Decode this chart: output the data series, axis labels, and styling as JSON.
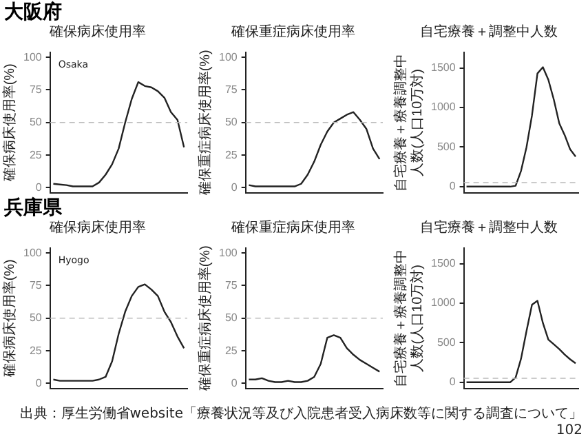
{
  "chart_data": [
    {
      "type": "line",
      "title": "大阪府",
      "subtitle": "確保病床使用率",
      "ylabel": "確保病床使用率(%)",
      "annotations": [
        "Osaka"
      ],
      "categories": [
        null,
        null,
        null,
        null,
        null,
        null,
        null,
        null,
        null,
        null,
        null,
        null,
        null,
        null,
        null,
        null,
        null,
        null,
        null,
        null,
        null
      ],
      "series": [
        {
          "color": "#222222",
          "values": [
            3,
            2.5,
            2,
            1,
            1,
            1,
            1,
            4,
            10,
            18,
            30,
            50,
            68,
            81,
            78,
            77,
            74,
            69,
            58,
            52,
            31
          ]
        }
      ],
      "ylim": [
        -4,
        104
      ],
      "yticks": [
        0,
        25,
        50,
        75,
        100
      ],
      "ref_lines": [
        {
          "axis": "y",
          "value": 50,
          "color": "#bbbbbb",
          "line_style": "dashed"
        }
      ],
      "tick_labels": "y",
      "grid": false,
      "legend": false,
      "marker": "none",
      "line_style": "solid"
    },
    {
      "type": "line",
      "title": "確保重症病床使用率",
      "ylabel": "確保重症病床使用率(%)",
      "categories": [
        null,
        null,
        null,
        null,
        null,
        null,
        null,
        null,
        null,
        null,
        null,
        null,
        null,
        null,
        null,
        null,
        null,
        null,
        null,
        null,
        null
      ],
      "series": [
        {
          "color": "#222222",
          "values": [
            2,
            1,
            1,
            1,
            1,
            1,
            1,
            1,
            3,
            10,
            20,
            33,
            43,
            50,
            53,
            56,
            58,
            52,
            45,
            30,
            22
          ]
        }
      ],
      "ylim": [
        -4,
        104
      ],
      "yticks": [
        0,
        25,
        50,
        75,
        100
      ],
      "ref_lines": [
        {
          "axis": "y",
          "value": 50,
          "color": "#bbbbbb",
          "line_style": "dashed"
        }
      ],
      "tick_labels": "y",
      "grid": false,
      "legend": false,
      "marker": "none",
      "line_style": "solid"
    },
    {
      "type": "line",
      "title": "自宅療養＋調整中人数",
      "ylabel": "自宅療養＋療養調整中人数(人口10万対)",
      "categories": [
        null,
        null,
        null,
        null,
        null,
        null,
        null,
        null,
        null,
        null,
        null,
        null,
        null,
        null,
        null,
        null,
        null,
        null,
        null,
        null,
        null
      ],
      "series": [
        {
          "color": "#222222",
          "values": [
            0,
            0,
            0,
            0,
            0,
            0,
            0,
            0,
            0,
            10,
            200,
            500,
            900,
            1430,
            1510,
            1350,
            1100,
            800,
            650,
            470,
            380
          ]
        }
      ],
      "ylim": [
        -80,
        1700
      ],
      "yticks": [
        0,
        500,
        1000,
        1500
      ],
      "ref_lines": [
        {
          "axis": "y",
          "value": 50,
          "color": "#bbbbbb",
          "line_style": "dashed"
        }
      ],
      "tick_labels": "y",
      "grid": false,
      "legend": false,
      "marker": "none",
      "line_style": "solid"
    },
    {
      "type": "line",
      "title": "兵庫県",
      "subtitle": "確保病床使用率",
      "ylabel": "確保病床使用率(%)",
      "annotations": [
        "Hyogo"
      ],
      "categories": [
        null,
        null,
        null,
        null,
        null,
        null,
        null,
        null,
        null,
        null,
        null,
        null,
        null,
        null,
        null,
        null,
        null,
        null,
        null,
        null,
        null
      ],
      "series": [
        {
          "color": "#222222",
          "values": [
            3,
            2,
            2,
            2,
            2,
            2,
            2,
            3,
            5,
            17,
            38,
            55,
            67,
            74,
            76,
            72,
            67,
            55,
            47,
            36,
            27
          ]
        }
      ],
      "ylim": [
        -4,
        104
      ],
      "yticks": [
        0,
        25,
        50,
        75,
        100
      ],
      "ref_lines": [
        {
          "axis": "y",
          "value": 50,
          "color": "#bbbbbb",
          "line_style": "dashed"
        }
      ],
      "tick_labels": "y",
      "grid": false,
      "legend": false,
      "marker": "none",
      "line_style": "solid"
    },
    {
      "type": "line",
      "title": "確保重症病床使用率",
      "ylabel": "確保重症病床使用率(%)",
      "categories": [
        null,
        null,
        null,
        null,
        null,
        null,
        null,
        null,
        null,
        null,
        null,
        null,
        null,
        null,
        null,
        null,
        null,
        null,
        null,
        null,
        null
      ],
      "series": [
        {
          "color": "#222222",
          "values": [
            3,
            3,
            4,
            2,
            1,
            1,
            2,
            1,
            1,
            2,
            5,
            15,
            35,
            37,
            35,
            27,
            22,
            18,
            15,
            12,
            9
          ]
        }
      ],
      "ylim": [
        -4,
        104
      ],
      "yticks": [
        0,
        25,
        50,
        75,
        100
      ],
      "ref_lines": [
        {
          "axis": "y",
          "value": 50,
          "color": "#bbbbbb",
          "line_style": "dashed"
        }
      ],
      "tick_labels": "y",
      "grid": false,
      "legend": false,
      "marker": "none",
      "line_style": "solid"
    },
    {
      "type": "line",
      "title": "自宅療養＋調整中人数",
      "ylabel": "自宅療養＋療養調整中人数(人口10万対)",
      "annotations": [
        "出典：厚生労働省website「療養状況等及び入院患者受入病床数等に関する調査について」",
        "102"
      ],
      "categories": [
        null,
        null,
        null,
        null,
        null,
        null,
        null,
        null,
        null,
        null,
        null,
        null,
        null,
        null,
        null,
        null,
        null,
        null,
        null,
        null,
        null
      ],
      "series": [
        {
          "color": "#222222",
          "values": [
            0,
            0,
            0,
            0,
            0,
            0,
            0,
            0,
            0,
            60,
            300,
            650,
            980,
            1030,
            750,
            540,
            480,
            420,
            350,
            290,
            240
          ]
        }
      ],
      "ylim": [
        -80,
        1700
      ],
      "yticks": [
        0,
        500,
        1000,
        1500
      ],
      "ref_lines": [
        {
          "axis": "y",
          "value": 50,
          "color": "#bbbbbb",
          "line_style": "dashed"
        }
      ],
      "tick_labels": "y",
      "grid": false,
      "legend": false,
      "marker": "none",
      "line_style": "solid"
    }
  ]
}
